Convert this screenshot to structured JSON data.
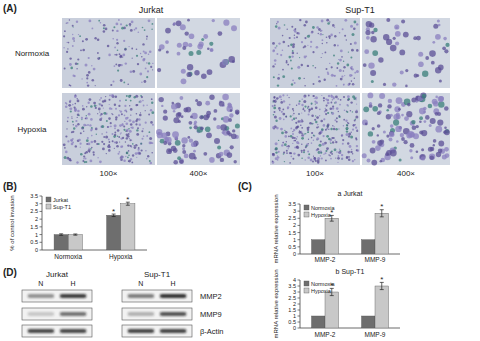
{
  "figure": {
    "panel_labels": [
      "(A)",
      "(B)",
      "(C)",
      "(D)"
    ],
    "micrographs": {
      "cell_lines": [
        "Jurkat",
        "Sup-T1"
      ],
      "conditions": [
        "Normoxia",
        "Hypoxia"
      ],
      "magnifications": [
        "100×",
        "400×"
      ]
    },
    "blot": {
      "cell_lines": [
        "Jurkat",
        "Sup-T1"
      ],
      "lanes": [
        "N",
        "H"
      ],
      "proteins": [
        "MMP2",
        "MMP9",
        "β-Actin"
      ]
    }
  },
  "chart_data": [
    {
      "type": "bar",
      "y_label": "% of control invasion",
      "categories": [
        "Normoxia",
        "Hypoxia"
      ],
      "series": [
        {
          "name": "Jurkat",
          "color": "#6e6e6e",
          "values": [
            1,
            2.25
          ],
          "errors": [
            0.05,
            0.08
          ],
          "significance": [
            null,
            "*"
          ]
        },
        {
          "name": "Sup-T1",
          "color": "#c8c8c8",
          "values": [
            1,
            3.0
          ],
          "errors": [
            0.04,
            0.1
          ],
          "significance": [
            null,
            "*"
          ]
        }
      ],
      "ylim": [
        0,
        3.5
      ],
      "yticks": [
        0,
        0.5,
        1,
        1.5,
        2,
        2.5,
        3,
        3.5
      ],
      "legend": "top-left",
      "grid": false
    },
    {
      "type": "bar",
      "title": "a Jurkat",
      "y_label": "mRNA relative expression",
      "categories": [
        "MMP-2",
        "MMP-9"
      ],
      "series": [
        {
          "name": "Normoxia",
          "color": "#6e6e6e",
          "values": [
            1,
            1
          ]
        },
        {
          "name": "Hypoxia",
          "color": "#c8c8c8",
          "values": [
            2.5,
            2.85
          ],
          "errors": [
            0.2,
            0.25
          ],
          "significance": [
            "*",
            "*"
          ]
        }
      ],
      "ylim": [
        0,
        3.5
      ],
      "yticks": [
        0,
        0.5,
        1,
        1.5,
        2,
        2.5,
        3,
        3.5
      ],
      "legend": "top-left",
      "grid": false
    },
    {
      "type": "bar",
      "title": "b Sup-T1",
      "y_label": "mRNA relative expression",
      "categories": [
        "MMP-2",
        "MMP-9"
      ],
      "series": [
        {
          "name": "Normoxia",
          "color": "#6e6e6e",
          "values": [
            1,
            1
          ]
        },
        {
          "name": "Hypoxia",
          "color": "#c8c8c8",
          "values": [
            3.0,
            3.5
          ],
          "errors": [
            0.3,
            0.3
          ],
          "significance": [
            "*",
            "*"
          ]
        }
      ],
      "ylim": [
        0,
        4
      ],
      "yticks": [
        0,
        0.5,
        1,
        1.5,
        2,
        2.5,
        3,
        3.5,
        4
      ],
      "legend": "top-left",
      "grid": false
    }
  ]
}
